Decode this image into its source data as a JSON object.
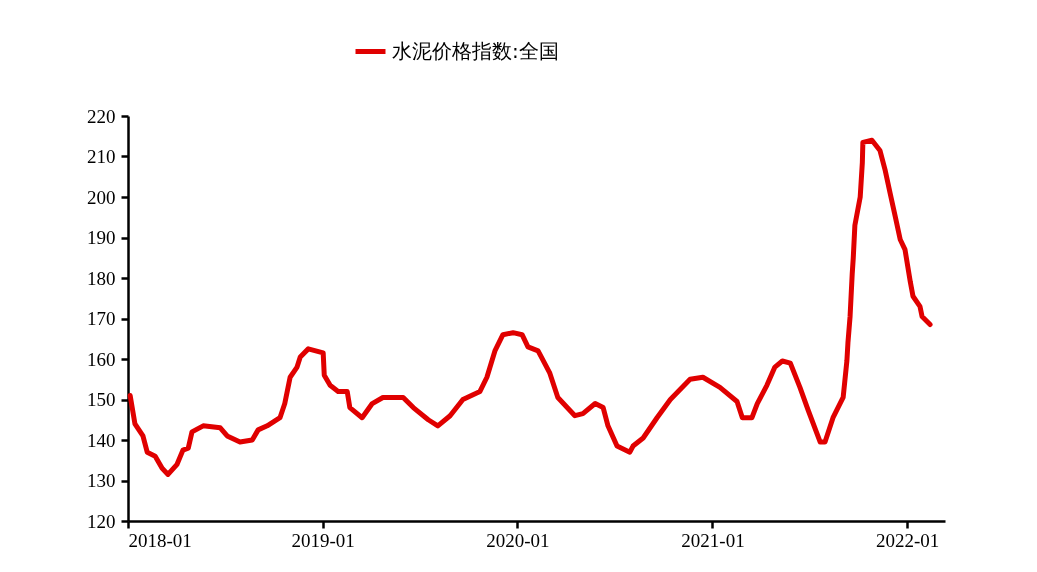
{
  "chart_data": {
    "type": "line",
    "legend": "top",
    "marker": "none",
    "line_style": "solid",
    "grid": false,
    "xlim": [
      "2018-01-01",
      "2022-03-13"
    ],
    "xticks": [
      "2018-01",
      "2019-01",
      "2020-01",
      "2021-01",
      "2022-01"
    ],
    "ylim": [
      120,
      220
    ],
    "yticks": [
      120,
      130,
      140,
      150,
      160,
      170,
      180,
      190,
      200,
      210,
      220
    ],
    "x": [
      "2018-01-05",
      "2018-01-14",
      "2018-01-29",
      "2018-02-06",
      "2018-02-21",
      "2018-03-06",
      "2018-03-17",
      "2018-04-03",
      "2018-04-14",
      "2018-04-24",
      "2018-05-01",
      "2018-05-22",
      "2018-06-23",
      "2018-07-06",
      "2018-07-30",
      "2018-08-22",
      "2018-09-02",
      "2018-09-19",
      "2018-10-13",
      "2018-10-22",
      "2018-11-01",
      "2018-11-14",
      "2018-11-20",
      "2018-12-05",
      "2019-01-02",
      "2019-01-04",
      "2019-01-15",
      "2019-01-30",
      "2019-02-16",
      "2019-02-21",
      "2019-03-16",
      "2019-04-04",
      "2019-04-24",
      "2019-06-01",
      "2019-06-20",
      "2019-07-18",
      "2019-08-05",
      "2019-08-28",
      "2019-09-21",
      "2019-10-23",
      "2019-11-05",
      "2019-11-20",
      "2019-12-05",
      "2019-12-24",
      "2020-01-10",
      "2020-01-21",
      "2020-02-09",
      "2020-03-02",
      "2020-03-17",
      "2020-04-18",
      "2020-05-03",
      "2020-05-26",
      "2020-06-10",
      "2020-06-19",
      "2020-07-06",
      "2020-07-30",
      "2020-08-05",
      "2020-08-24",
      "2020-09-19",
      "2020-10-14",
      "2020-11-20",
      "2020-12-14",
      "2021-01-15",
      "2021-02-16",
      "2021-02-26",
      "2021-03-16",
      "2021-03-26",
      "2021-04-13",
      "2021-04-28",
      "2021-05-12",
      "2021-05-27",
      "2021-06-14",
      "2021-06-29",
      "2021-07-22",
      "2021-07-31",
      "2021-08-15",
      "2021-09-03",
      "2021-09-10",
      "2021-09-12",
      "2021-09-16",
      "2021-09-20",
      "2021-09-22",
      "2021-09-25",
      "2021-10-05",
      "2021-10-09",
      "2021-10-10",
      "2021-10-27",
      "2021-11-11",
      "2021-11-21",
      "2021-11-30",
      "2021-12-10",
      "2021-12-19",
      "2021-12-28",
      "2022-01-07",
      "2022-01-12",
      "2022-01-25",
      "2022-01-29",
      "2022-02-13"
    ],
    "series": [
      {
        "name": "水泥价格指数:全国",
        "color": "#e00000",
        "values": [
          151,
          144,
          141,
          137,
          136,
          133,
          131.5,
          134,
          137.5,
          138,
          142,
          143.5,
          143,
          141,
          139.5,
          140,
          142.5,
          143.5,
          145.5,
          149,
          155.5,
          158,
          160.5,
          162.5,
          161.5,
          156,
          153.5,
          152,
          152,
          148,
          145.5,
          149,
          150.5,
          150.5,
          148,
          145,
          143.5,
          146,
          150,
          152,
          155.5,
          162,
          166,
          166.5,
          166,
          163,
          162,
          156.5,
          150.5,
          146,
          146.5,
          149,
          148,
          143.5,
          138.5,
          137,
          138.5,
          140.5,
          145.5,
          150,
          155,
          155.5,
          153,
          149.5,
          145.5,
          145.5,
          149,
          153.5,
          158,
          159.5,
          159,
          153,
          147.5,
          139.5,
          139.5,
          145.5,
          150.5,
          159.5,
          164,
          170.5,
          181,
          185,
          193,
          200,
          208.5,
          213.5,
          214,
          211.5,
          206.5,
          201,
          195,
          189.5,
          187,
          179,
          175.5,
          173,
          170.5,
          168.5
        ]
      }
    ]
  }
}
